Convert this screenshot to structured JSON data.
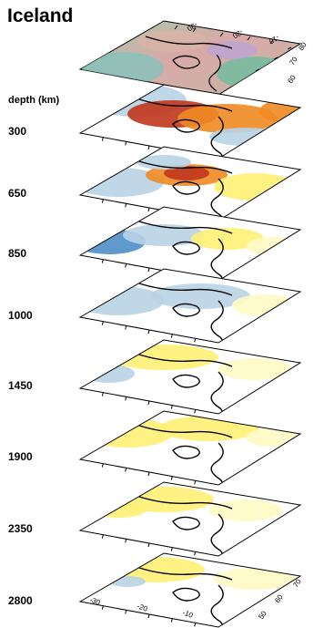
{
  "title": "Iceland",
  "depth_header": "depth (km)",
  "layers": [
    {
      "depth": "300"
    },
    {
      "depth": "650"
    },
    {
      "depth": "850"
    },
    {
      "depth": "1000"
    },
    {
      "depth": "1450"
    },
    {
      "depth": "1900"
    },
    {
      "depth": "2350"
    },
    {
      "depth": "2800"
    }
  ],
  "axis_labels": {
    "lon_bottom": [
      "-30",
      "-20",
      "-10"
    ],
    "lat_right": [
      "50",
      "60",
      "70"
    ],
    "top_map_lon": [
      "-30",
      "-20",
      "-10"
    ],
    "top_map_lat": [
      "60",
      "70",
      "80"
    ]
  },
  "colors": {
    "red": "#c0361c",
    "orange": "#f08a24",
    "yellow": "#fff176",
    "pale_yellow": "#fff9c4",
    "light_blue": "#b9d3e6",
    "blue": "#4f8fc8"
  }
}
